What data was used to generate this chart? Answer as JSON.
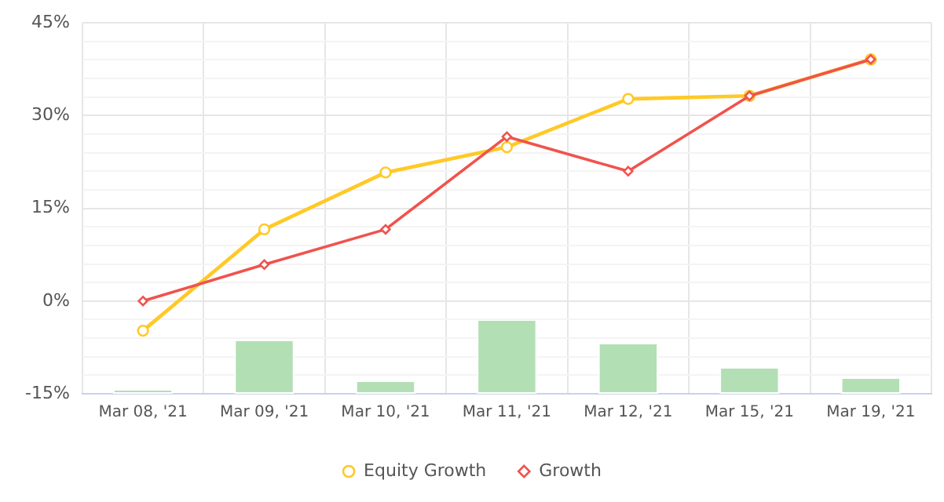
{
  "chart_data": {
    "type": "line",
    "categories": [
      "Mar 08, '21",
      "Mar 09, '21",
      "Mar 10, '21",
      "Mar 11, '21",
      "Mar 12, '21",
      "Mar 15, '21",
      "Mar 19, '21"
    ],
    "series": [
      {
        "type": "bar",
        "color": "#b3dfb4",
        "base": [
          -15,
          -15,
          -15,
          -15,
          -15,
          -15,
          -15
        ],
        "values": [
          0.5,
          8.5,
          1.9,
          11.8,
          8.0,
          4.1,
          2.4
        ]
      },
      {
        "name": "Equity Growth",
        "color": "#ffc926",
        "marker": "circle",
        "values": [
          -4.8,
          11.6,
          20.8,
          24.9,
          32.7,
          33.2,
          39.1
        ]
      },
      {
        "name": "Growth",
        "color": "#f0534d",
        "marker": "diamond",
        "values": [
          0,
          5.9,
          11.6,
          26.6,
          21.0,
          33.2,
          39.1
        ]
      }
    ],
    "ylim": [
      -15,
      45
    ],
    "yticks": [
      {
        "value": -15,
        "label": "-15%"
      },
      {
        "value": -12,
        "label": null
      },
      {
        "value": -9,
        "label": null
      },
      {
        "value": -6,
        "label": null
      },
      {
        "value": -3,
        "label": null
      },
      {
        "value": 0,
        "label": "0%"
      },
      {
        "value": 3,
        "label": null
      },
      {
        "value": 6,
        "label": null
      },
      {
        "value": 9,
        "label": null
      },
      {
        "value": 12,
        "label": null
      },
      {
        "value": 15,
        "label": "15%"
      },
      {
        "value": 18,
        "label": null
      },
      {
        "value": 21,
        "label": null
      },
      {
        "value": 24,
        "label": null
      },
      {
        "value": 27,
        "label": null
      },
      {
        "value": 30,
        "label": "30%"
      },
      {
        "value": 33,
        "label": null
      },
      {
        "value": 36,
        "label": null
      },
      {
        "value": 39,
        "label": null
      },
      {
        "value": 42,
        "label": null
      },
      {
        "value": 45,
        "label": "45%"
      }
    ],
    "grid": true,
    "legend": "bottom",
    "line_style": "solid"
  }
}
